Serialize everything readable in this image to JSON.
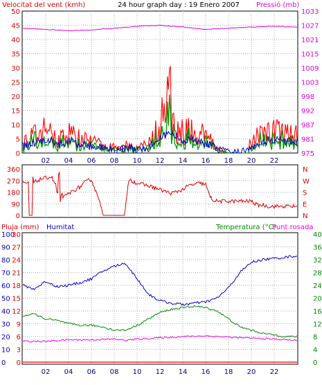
{
  "header": {
    "wind_label": "Velocitat del vent (kmh)",
    "title": "24 hour graph day : 19 Enero 2007",
    "pressure_label": "Pressió (mb)"
  },
  "mid": {
    "directions": [
      "N",
      "W",
      "S",
      "E",
      "N"
    ]
  },
  "bottom": {
    "rain_label": "Pluja (mm)",
    "humidity_label": "Humitat",
    "temp_label": "Temperatura (°C)",
    "dew_label": "Punt rosada"
  },
  "colors": {
    "wind": "#ff0000",
    "gust": "#ee0000",
    "avg_wind": "#009900",
    "pressure": "#dd00dd",
    "direction": "#dd0000",
    "humidity": "#0000cc",
    "temperature": "#008800",
    "dew": "#ee00ee",
    "rain": "#dd0000",
    "grid": "#aaaaaa"
  },
  "chart_data": [
    {
      "type": "line",
      "title": "24 hour graph day : 19 Enero 2007",
      "x_ticks": [
        "02",
        "04",
        "06",
        "08",
        "10",
        "12",
        "14",
        "16",
        "18",
        "20",
        "22"
      ],
      "y_left_ticks": [
        "0",
        "5",
        "10",
        "15",
        "20",
        "25",
        "30",
        "35",
        "40",
        "45",
        "50"
      ],
      "y_left_range": [
        0,
        50
      ],
      "y_right_ticks": [
        "975",
        "981",
        "987",
        "992",
        "998",
        "1003",
        "1009",
        "1015",
        "1021",
        "1027",
        "1033"
      ],
      "y_right_range": [
        975,
        1033
      ],
      "series": [
        {
          "name": "Velocitat del vent (kmh)",
          "hours": [
            0,
            1,
            2,
            3,
            4,
            5,
            6,
            7,
            8,
            9,
            10,
            11,
            12,
            13,
            14,
            15,
            16,
            17,
            18,
            19,
            20,
            21,
            22,
            23,
            24
          ],
          "values": [
            4,
            6,
            8,
            5,
            7,
            5,
            4,
            3,
            2,
            3,
            2,
            3,
            9,
            11,
            8,
            7,
            6,
            2,
            0,
            0,
            4,
            7,
            8,
            7,
            6
          ]
        },
        {
          "name": "Pressió (mb)",
          "hours": [
            0,
            2,
            4,
            6,
            8,
            10,
            12,
            14,
            16,
            18,
            20,
            22,
            24
          ],
          "values": [
            1026,
            1025.5,
            1025,
            1025.3,
            1026,
            1026.8,
            1027.2,
            1026.5,
            1025.5,
            1026,
            1026.5,
            1026.8,
            1026.5
          ]
        }
      ]
    },
    {
      "type": "line",
      "x_ticks": [
        "02",
        "04",
        "06",
        "08",
        "10",
        "12",
        "14",
        "16",
        "18",
        "20",
        "22"
      ],
      "y_left_ticks": [
        "360",
        "270",
        "180",
        "90",
        "0"
      ],
      "y_right_labels": [
        "N",
        "W",
        "S",
        "E",
        "N"
      ],
      "y_range": [
        0,
        360
      ],
      "series": [
        {
          "name": "direction",
          "hours": [
            0,
            0.7,
            1.5,
            2.5,
            3.1,
            3.6,
            4.2,
            5,
            5.5,
            6,
            6.4,
            6.7,
            7,
            8.9,
            9.3,
            9.5,
            10,
            11,
            12,
            13,
            14,
            14.5,
            15,
            15.5,
            16,
            16.3,
            16.6,
            17,
            18,
            19,
            20,
            20.5,
            21,
            21.5,
            22,
            24
          ],
          "values": [
            260,
            240,
            280,
            300,
            200,
            140,
            180,
            220,
            260,
            280,
            180,
            130,
            0,
            0,
            290,
            270,
            250,
            230,
            200,
            170,
            200,
            230,
            240,
            250,
            240,
            160,
            120,
            110,
            110,
            110,
            110,
            80,
            80,
            70,
            70,
            70
          ]
        }
      ]
    },
    {
      "type": "line",
      "x_ticks": [
        "02",
        "04",
        "06",
        "08",
        "10",
        "12",
        "14",
        "16",
        "18",
        "20",
        "22"
      ],
      "humidity_ticks": [
        "0",
        "10",
        "20",
        "30",
        "40",
        "50",
        "60",
        "70",
        "80",
        "90",
        "100"
      ],
      "rain_ticks": [
        "0",
        "3",
        "6",
        "9",
        "12",
        "15",
        "18",
        "21",
        "24",
        "27",
        "30"
      ],
      "temp_ticks": [
        "0",
        "4",
        "8",
        "12",
        "16",
        "20",
        "24",
        "28",
        "32",
        "36",
        "40"
      ],
      "humidity_range": [
        0,
        100
      ],
      "temp_range": [
        0,
        40
      ],
      "series": [
        {
          "name": "Humitat",
          "hours": [
            0,
            1,
            2,
            3,
            4,
            5,
            6,
            7,
            8,
            9,
            10,
            11,
            12,
            13,
            14,
            15,
            16,
            17,
            18,
            19,
            20,
            21,
            22,
            23,
            24
          ],
          "values": [
            60,
            57,
            63,
            59,
            60,
            62,
            65,
            71,
            75,
            77,
            65,
            53,
            48,
            46,
            45,
            46,
            47,
            50,
            58,
            70,
            78,
            80,
            81,
            82,
            83
          ]
        },
        {
          "name": "Temperatura (°C)",
          "hours": [
            0,
            1,
            2,
            3,
            4,
            5,
            6,
            7,
            8,
            9,
            10,
            11,
            12,
            13,
            14,
            15,
            16,
            17,
            18,
            19,
            20,
            21,
            22,
            23,
            24
          ],
          "values": [
            14.5,
            15,
            13.5,
            13,
            12,
            11.5,
            11.5,
            11,
            10,
            10,
            11.5,
            13.5,
            15.5,
            16.5,
            17,
            17.5,
            17,
            16,
            13.5,
            11,
            10,
            9,
            8.5,
            8,
            8
          ]
        },
        {
          "name": "Punt rosada",
          "hours": [
            0,
            2,
            4,
            6,
            8,
            9,
            10,
            12,
            14,
            16,
            18,
            20,
            22,
            24
          ],
          "values": [
            6.5,
            6.5,
            7,
            7,
            7.2,
            6.8,
            7.2,
            7.6,
            8,
            8.2,
            7.8,
            7.5,
            7.2,
            6.8
          ]
        },
        {
          "name": "Pluja (mm)",
          "hours": [
            0,
            24
          ],
          "values": [
            0,
            0
          ]
        }
      ]
    }
  ]
}
